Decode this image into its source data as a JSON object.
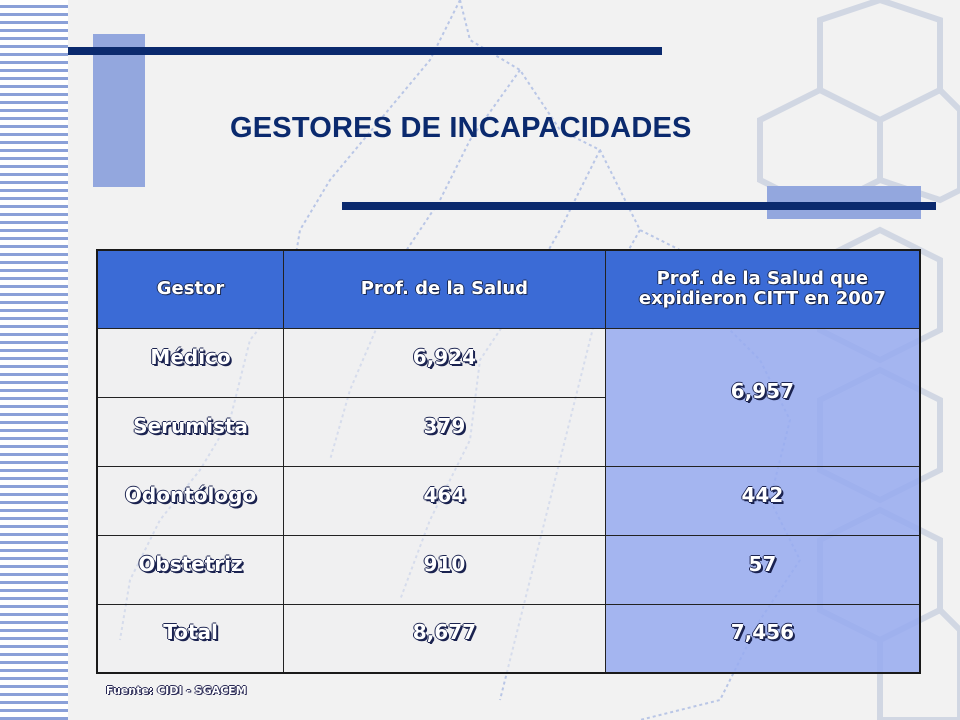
{
  "slide": {
    "title": "GESTORES DE INCAPACIDADES",
    "source": "Fuente: CIDI - SGACEM"
  },
  "table": {
    "headers": [
      "Gestor",
      "Prof. de la Salud",
      "Prof. de la Salud que expidieron CITT en 2007"
    ],
    "rows": [
      {
        "gestor": "Médico",
        "prof_salud": "6,924"
      },
      {
        "gestor": "Serumista",
        "prof_salud": "379"
      },
      {
        "gestor": "Odontólogo",
        "prof_salud": "464",
        "citt_2007": "442"
      },
      {
        "gestor": "Obstetriz",
        "prof_salud": "910",
        "citt_2007": "57"
      },
      {
        "gestor": "Total",
        "prof_salud": "8,677",
        "citt_2007": "7,456"
      }
    ],
    "merged_citt_medico_serumista": "6,957"
  },
  "colors": {
    "header_bg": "#3b6bd6",
    "highlight_col_bg": "#96aaf0",
    "accent_dark": "#0b2a6e",
    "accent_light": "#93a7de"
  }
}
